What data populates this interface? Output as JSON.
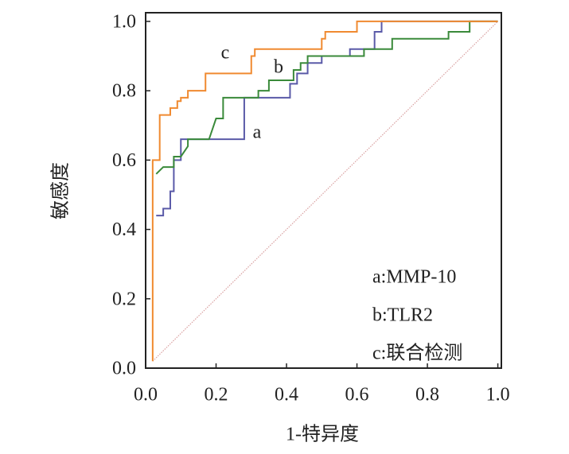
{
  "chart_data": {
    "type": "line",
    "xlabel": "1-特异度",
    "ylabel": "敏感度",
    "xlim": [
      0,
      1.01
    ],
    "ylim": [
      0,
      1.025
    ],
    "xticks": [
      {
        "value": 0,
        "label": "0.0"
      },
      {
        "value": 0.2,
        "label": "0.2"
      },
      {
        "value": 0.4,
        "label": "0.4"
      },
      {
        "value": 0.6,
        "label": "0.6"
      },
      {
        "value": 0.8,
        "label": "0.8"
      },
      {
        "value": 1,
        "label": "1.0"
      }
    ],
    "yticks": [
      {
        "value": 0,
        "label": "0.0"
      },
      {
        "value": 0.2,
        "label": "0.2"
      },
      {
        "value": 0.4,
        "label": "0.4"
      },
      {
        "value": 0.6,
        "label": "0.6"
      },
      {
        "value": 0.8,
        "label": "0.8"
      },
      {
        "value": 1,
        "label": "1.0"
      }
    ],
    "grid": false,
    "legend_position": "lower right",
    "legend": [
      "a:MMP-10",
      "b:TLR2",
      "c:联合检测"
    ],
    "reference_line": {
      "x": [
        0.02,
        1
      ],
      "values": [
        0.02,
        1
      ],
      "color": "#d9a0a0"
    },
    "series": [
      {
        "name": "a",
        "color": "#5a5aa8",
        "x": [
          0.03,
          0.05,
          0.05,
          0.07,
          0.07,
          0.08,
          0.08,
          0.1,
          0.1,
          0.28,
          0.28,
          0.41,
          0.41,
          0.43,
          0.43,
          0.46,
          0.46,
          0.5,
          0.5,
          0.58,
          0.58,
          0.65,
          0.65,
          0.67,
          0.67,
          1
        ],
        "values": [
          0.44,
          0.44,
          0.46,
          0.46,
          0.51,
          0.51,
          0.6,
          0.6,
          0.66,
          0.66,
          0.78,
          0.78,
          0.82,
          0.82,
          0.85,
          0.85,
          0.88,
          0.88,
          0.9,
          0.9,
          0.92,
          0.92,
          0.97,
          0.97,
          1,
          1
        ]
      },
      {
        "name": "b",
        "color": "#3a8a3a",
        "x": [
          0.03,
          0.05,
          0.08,
          0.08,
          0.1,
          0.12,
          0.12,
          0.18,
          0.2,
          0.22,
          0.22,
          0.32,
          0.32,
          0.35,
          0.35,
          0.42,
          0.42,
          0.44,
          0.44,
          0.46,
          0.46,
          0.62,
          0.62,
          0.7,
          0.7,
          0.86,
          0.86,
          0.92,
          0.92,
          1
        ],
        "values": [
          0.56,
          0.58,
          0.58,
          0.61,
          0.61,
          0.64,
          0.66,
          0.66,
          0.72,
          0.72,
          0.78,
          0.78,
          0.8,
          0.8,
          0.83,
          0.83,
          0.86,
          0.86,
          0.88,
          0.88,
          0.9,
          0.9,
          0.92,
          0.92,
          0.95,
          0.95,
          0.97,
          0.97,
          1,
          1
        ]
      },
      {
        "name": "c",
        "color": "#f08a30",
        "x": [
          0.02,
          0.02,
          0.04,
          0.04,
          0.07,
          0.07,
          0.09,
          0.09,
          0.1,
          0.1,
          0.12,
          0.12,
          0.17,
          0.17,
          0.3,
          0.3,
          0.31,
          0.31,
          0.5,
          0.5,
          0.51,
          0.51,
          0.6,
          0.6,
          1
        ],
        "values": [
          0.02,
          0.6,
          0.6,
          0.73,
          0.73,
          0.75,
          0.75,
          0.77,
          0.77,
          0.78,
          0.78,
          0.8,
          0.8,
          0.85,
          0.85,
          0.9,
          0.9,
          0.92,
          0.92,
          0.95,
          0.95,
          0.97,
          0.97,
          1,
          1
        ]
      }
    ]
  }
}
